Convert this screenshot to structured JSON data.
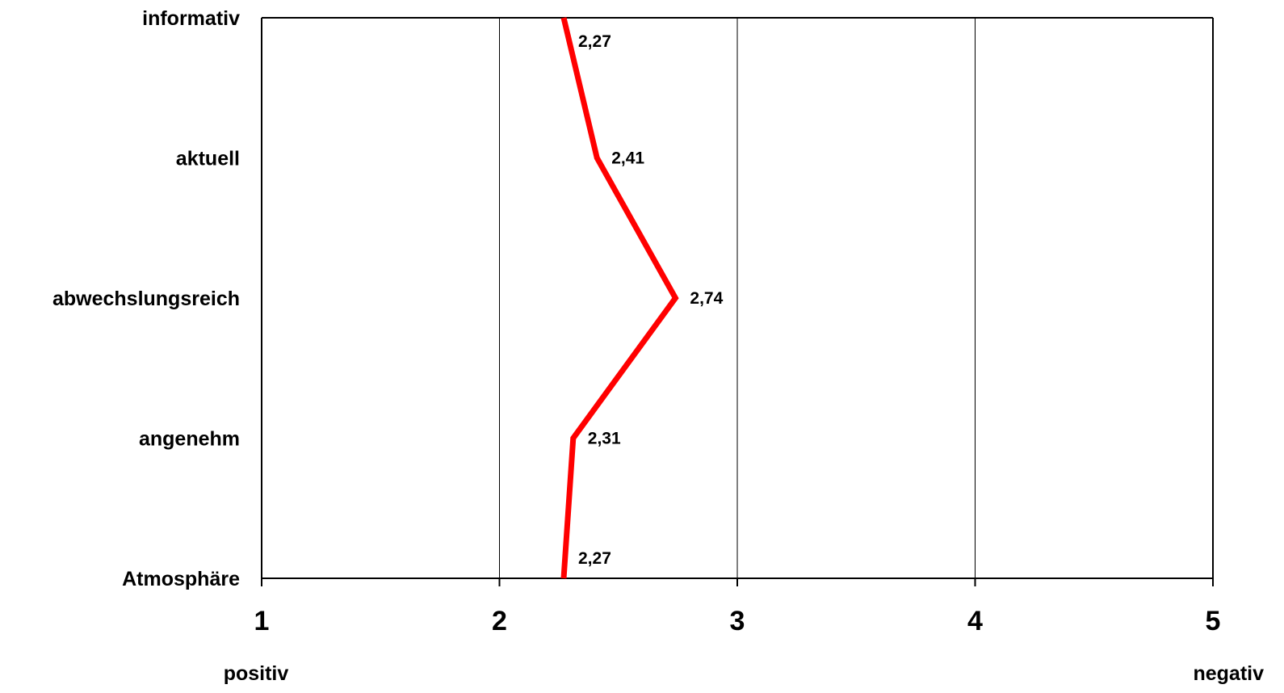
{
  "chart_data": {
    "type": "line",
    "orientation": "horizontal-profile",
    "categories": [
      "informativ",
      "aktuell",
      "abwechslungsreich",
      "angenehm",
      "Atmosphäre"
    ],
    "series": [
      {
        "values": [
          2.27,
          2.41,
          2.74,
          2.31,
          2.27
        ],
        "color": "#ff0000"
      }
    ],
    "data_labels": [
      "2,27",
      "2,41",
      "2,74",
      "2,31",
      "2,27"
    ],
    "x_ticks": [
      "1",
      "2",
      "3",
      "4",
      "5"
    ],
    "xlim": [
      1,
      5
    ],
    "scale_start_label": "positiv",
    "scale_end_label": "negativ",
    "grid": "vertical",
    "legend": "none"
  }
}
